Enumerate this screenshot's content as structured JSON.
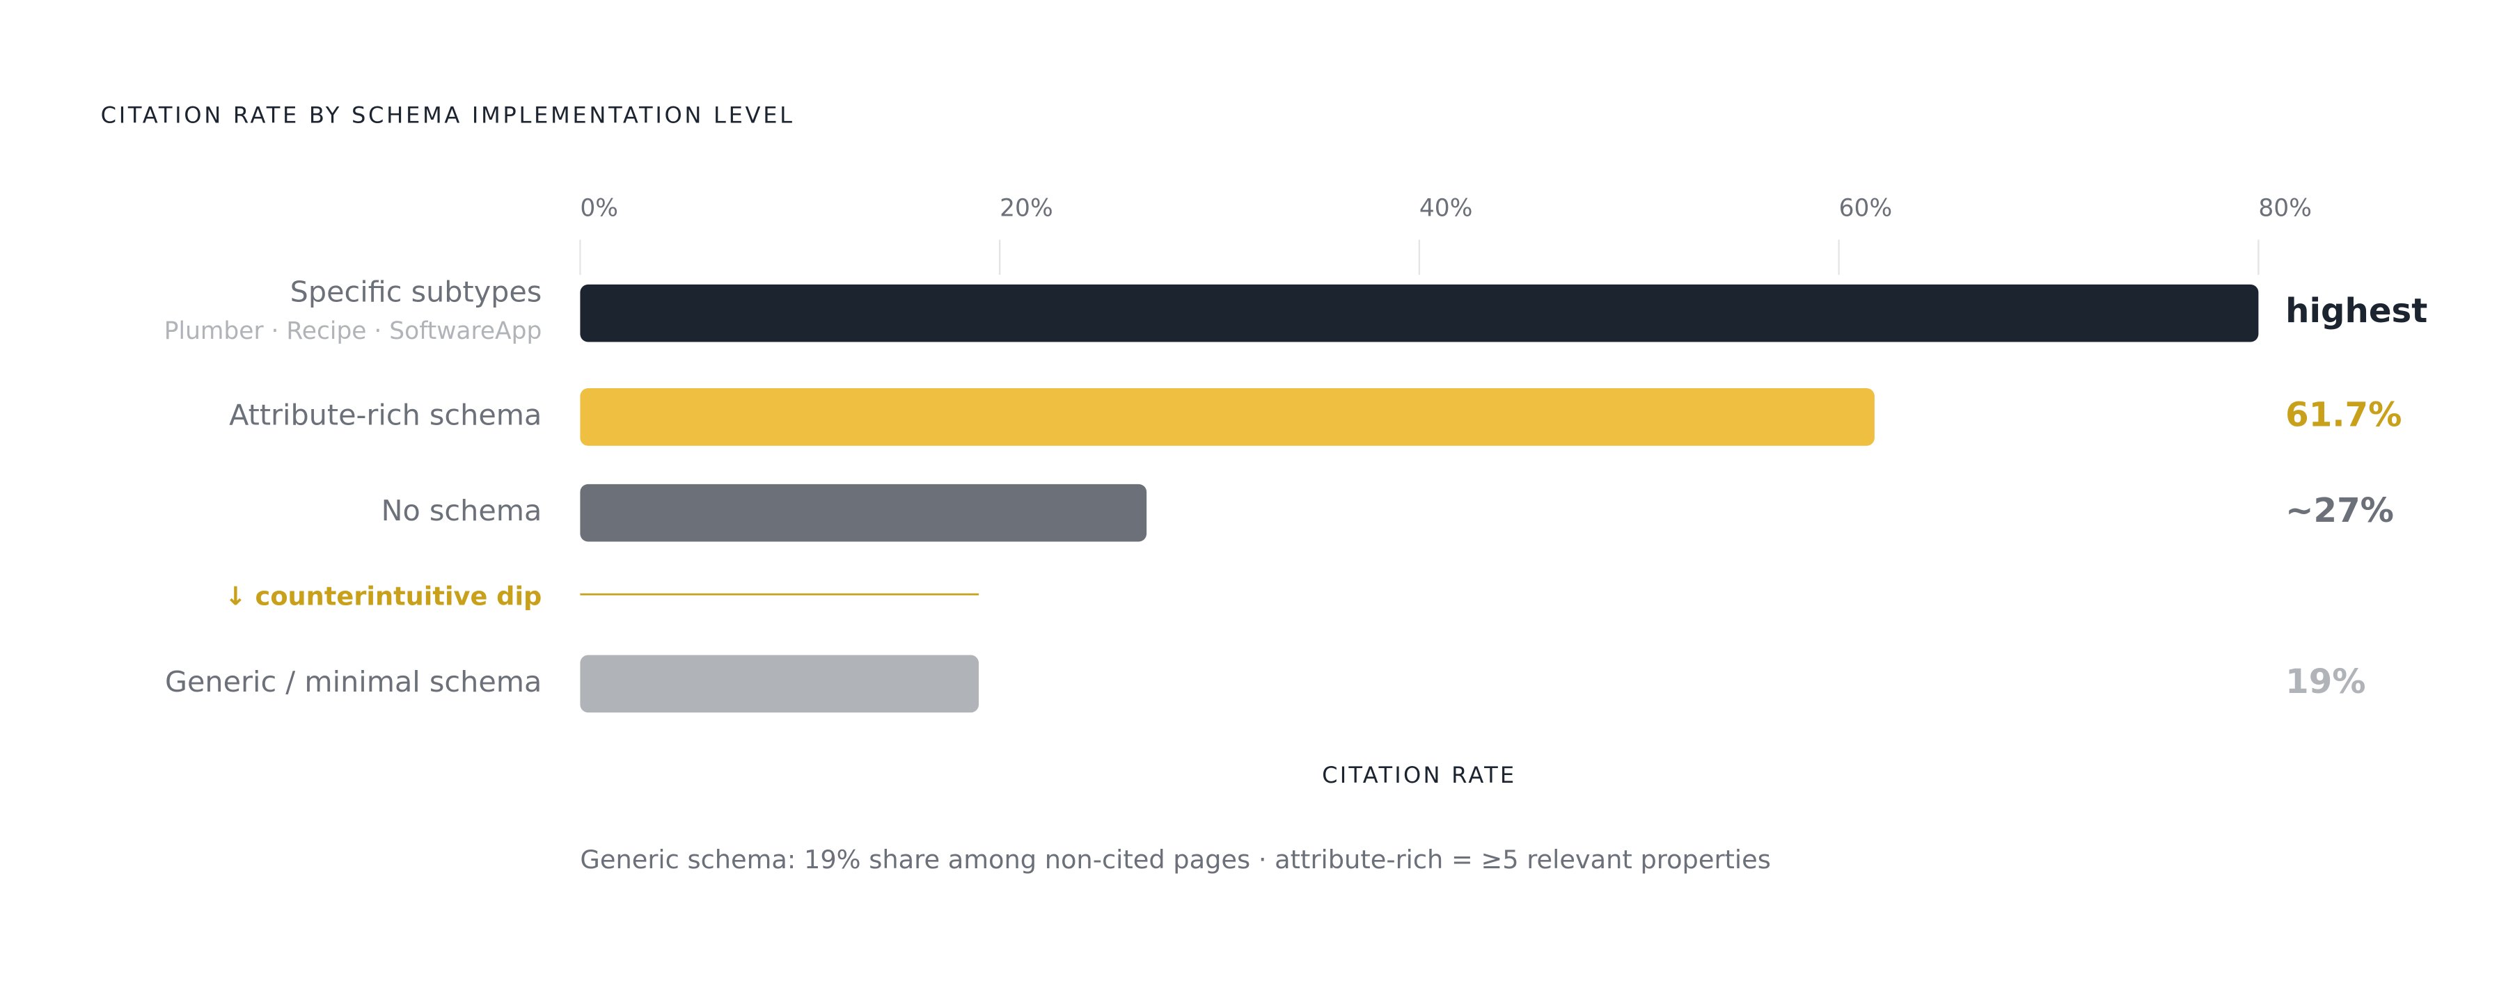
{
  "chart_data": {
    "type": "bar",
    "orientation": "horizontal",
    "title": "CITATION RATE BY SCHEMA IMPLEMENTATION LEVEL",
    "categories": [
      "Specific subtypes",
      "Attribute-rich schema",
      "No schema",
      "Generic / minimal schema"
    ],
    "category_notes": [
      "Plumber · Recipe · SoftwareApp",
      null,
      null,
      null
    ],
    "values": [
      80,
      61.7,
      27,
      19
    ],
    "value_labels": [
      "highest",
      "61.7%",
      "~27%",
      "19%"
    ],
    "colors": [
      "#1c2430",
      "#eebf41",
      "#6b7079",
      "#b0b3b7"
    ],
    "label_colors": [
      "#1c2430",
      "#c9a01a",
      "#6b7079",
      "#b0b3b7"
    ],
    "xlim": [
      0,
      87
    ],
    "xticks": [
      {
        "value": 0,
        "label": "0%"
      },
      {
        "value": 20,
        "label": "20%"
      },
      {
        "value": 40,
        "label": "40%"
      },
      {
        "value": 60,
        "label": "60%"
      },
      {
        "value": 80,
        "label": "80%"
      }
    ],
    "grid": true,
    "xlabel": "CITATION RATE",
    "annotation": {
      "text": "↓ counterintuitive dip",
      "color": "#c9a01a"
    },
    "footnote": "Generic schema: 19% share among non-cited pages · attribute-rich = ≥5 relevant properties"
  }
}
